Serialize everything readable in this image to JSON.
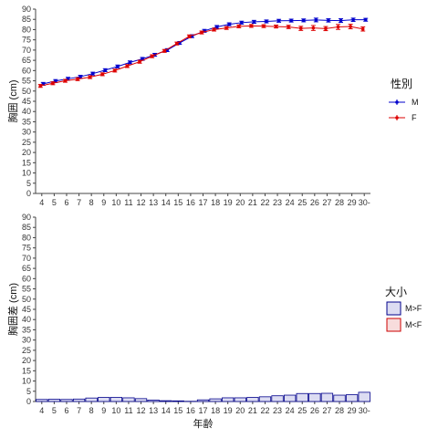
{
  "chart_data": [
    {
      "type": "line",
      "xlabel": "",
      "ylabel": "胸囲 (cm)",
      "ylim": [
        0,
        90
      ],
      "yticks": [
        0,
        5,
        10,
        15,
        20,
        25,
        30,
        35,
        40,
        45,
        50,
        55,
        60,
        65,
        70,
        75,
        80,
        85,
        90
      ],
      "categories": [
        "4",
        "5",
        "6",
        "7",
        "8",
        "9",
        "10",
        "11",
        "12",
        "13",
        "14",
        "15",
        "16",
        "17",
        "18",
        "19",
        "20",
        "21",
        "22",
        "23",
        "24",
        "25",
        "26",
        "27",
        "28",
        "29",
        "30-"
      ],
      "grid": false,
      "legend": {
        "title": "性別",
        "position": "right"
      },
      "series": [
        {
          "name": "M",
          "color": "#0000cc",
          "values": [
            53.5,
            54.9,
            56.0,
            57.0,
            58.5,
            60.2,
            62.0,
            64.0,
            65.7,
            67.7,
            70.0,
            73.5,
            76.8,
            79.4,
            81.3,
            82.6,
            83.4,
            83.8,
            84.0,
            84.3,
            84.4,
            84.5,
            84.7,
            84.5,
            84.4,
            84.8,
            84.8
          ],
          "err": [
            0.7,
            0.7,
            0.7,
            0.7,
            0.7,
            0.7,
            0.7,
            0.7,
            0.7,
            0.7,
            0.7,
            0.7,
            0.7,
            0.7,
            0.7,
            0.7,
            0.7,
            0.7,
            0.7,
            0.7,
            0.7,
            0.7,
            0.9,
            0.8,
            0.9,
            0.8,
            0.7
          ]
        },
        {
          "name": "F",
          "color": "#dd0000",
          "values": [
            52.5,
            53.8,
            55.0,
            55.8,
            56.8,
            58.2,
            60.0,
            62.2,
            64.3,
            67.0,
            69.6,
            73.2,
            76.7,
            78.6,
            80.0,
            80.8,
            81.6,
            81.8,
            81.7,
            81.5,
            81.3,
            80.6,
            80.8,
            80.5,
            81.3,
            81.5,
            80.3
          ],
          "err": [
            0.7,
            0.7,
            0.7,
            0.7,
            0.7,
            0.7,
            0.7,
            0.7,
            0.7,
            0.7,
            0.7,
            0.7,
            0.7,
            0.7,
            0.7,
            0.7,
            0.7,
            0.7,
            0.7,
            0.7,
            0.8,
            1.0,
            1.2,
            1.0,
            1.2,
            1.1,
            1.0
          ]
        }
      ]
    },
    {
      "type": "bar",
      "xlabel": "年齢",
      "ylabel": "胸囲差 (cm)",
      "ylim": [
        0,
        90
      ],
      "yticks": [
        0,
        5,
        10,
        15,
        20,
        25,
        30,
        35,
        40,
        45,
        50,
        55,
        60,
        65,
        70,
        75,
        80,
        85,
        90
      ],
      "categories": [
        "4",
        "5",
        "6",
        "7",
        "8",
        "9",
        "10",
        "11",
        "12",
        "13",
        "14",
        "15",
        "16",
        "17",
        "18",
        "19",
        "20",
        "21",
        "22",
        "23",
        "24",
        "25",
        "26",
        "27",
        "28",
        "29",
        "30-"
      ],
      "grid": false,
      "legend": {
        "title": "大小",
        "position": "right"
      },
      "series": [
        {
          "name": "M>F",
          "fill": "#dcdcf2",
          "stroke": "#00008b",
          "values": [
            1.0,
            1.1,
            1.0,
            1.2,
            1.7,
            2.0,
            2.0,
            1.8,
            1.4,
            0.7,
            0.4,
            0.3,
            0.1,
            0.8,
            1.3,
            1.8,
            1.8,
            2.0,
            2.3,
            2.8,
            3.1,
            3.9,
            3.9,
            4.0,
            3.1,
            3.3,
            4.5
          ]
        },
        {
          "name": "M<F",
          "fill": "#f7dcdc",
          "stroke": "#cc0000",
          "values": [
            0,
            0,
            0,
            0,
            0,
            0,
            0,
            0,
            0,
            0,
            0,
            0,
            0,
            0,
            0,
            0,
            0,
            0,
            0,
            0,
            0,
            0,
            0,
            0,
            0,
            0,
            0
          ]
        }
      ]
    }
  ]
}
